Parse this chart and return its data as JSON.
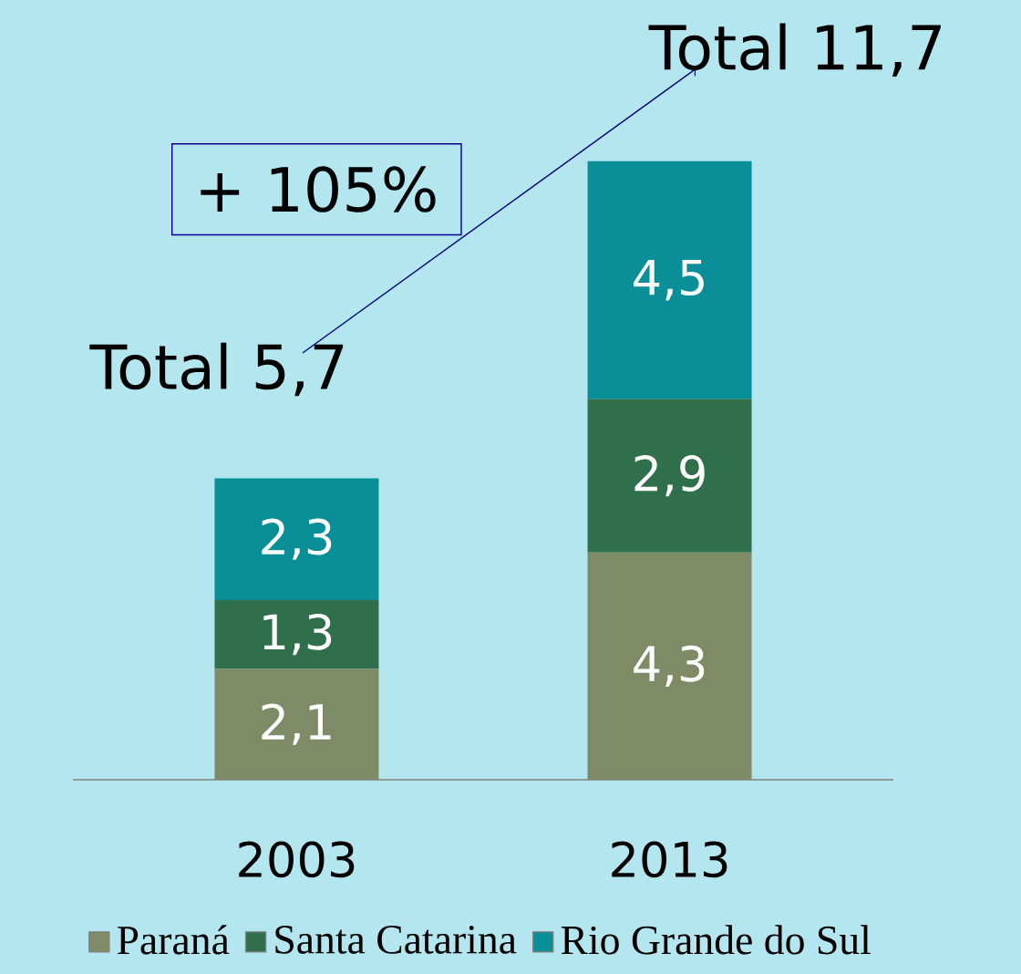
{
  "chart_data": {
    "type": "bar",
    "stacked": true,
    "categories": [
      "2003",
      "2013"
    ],
    "series": [
      {
        "name": "Paraná",
        "color": "#7f8a66",
        "values": [
          2.1,
          4.3
        ],
        "value_labels": [
          "2,1",
          "4,3"
        ]
      },
      {
        "name": "Santa Catarina",
        "color": "#2f6f4b",
        "values": [
          1.3,
          2.9
        ],
        "value_labels": [
          "1,3",
          "2,9"
        ]
      },
      {
        "name": "Rio Grande do Sul",
        "color": "#0a8e98",
        "values": [
          2.3,
          4.5
        ],
        "value_labels": [
          "2,3",
          "4,5"
        ]
      }
    ],
    "totals": [
      "Total 5,7",
      "Total 11,7"
    ],
    "annotations": [
      "+ 105%"
    ],
    "legend": "bottom"
  }
}
